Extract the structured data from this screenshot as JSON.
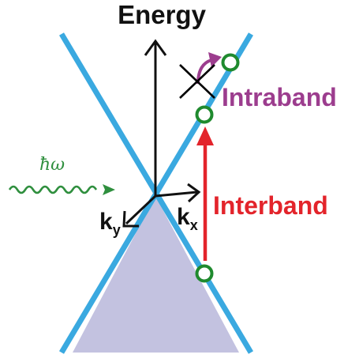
{
  "labels": {
    "energy": "Energy",
    "intraband": "Intraband",
    "interband": "Interband",
    "photon": "ħω",
    "kx_main": "k",
    "kx_sub": "x",
    "ky_main": "k",
    "ky_sub": "y"
  },
  "colors": {
    "band": "#3aa9e0",
    "valence_fill": "#c3c2e0",
    "axis": "#111111",
    "interband": "#e3242b",
    "intraband": "#9c3d8e",
    "photon": "#2f8f3e",
    "electron_ring": "#1f8a2e",
    "forbidden_cross": "#000000"
  },
  "icons": {
    "photon": "wavy-photon-arrow-icon",
    "forbidden": "cross-mark-icon",
    "electron": "electron-circle-icon"
  }
}
